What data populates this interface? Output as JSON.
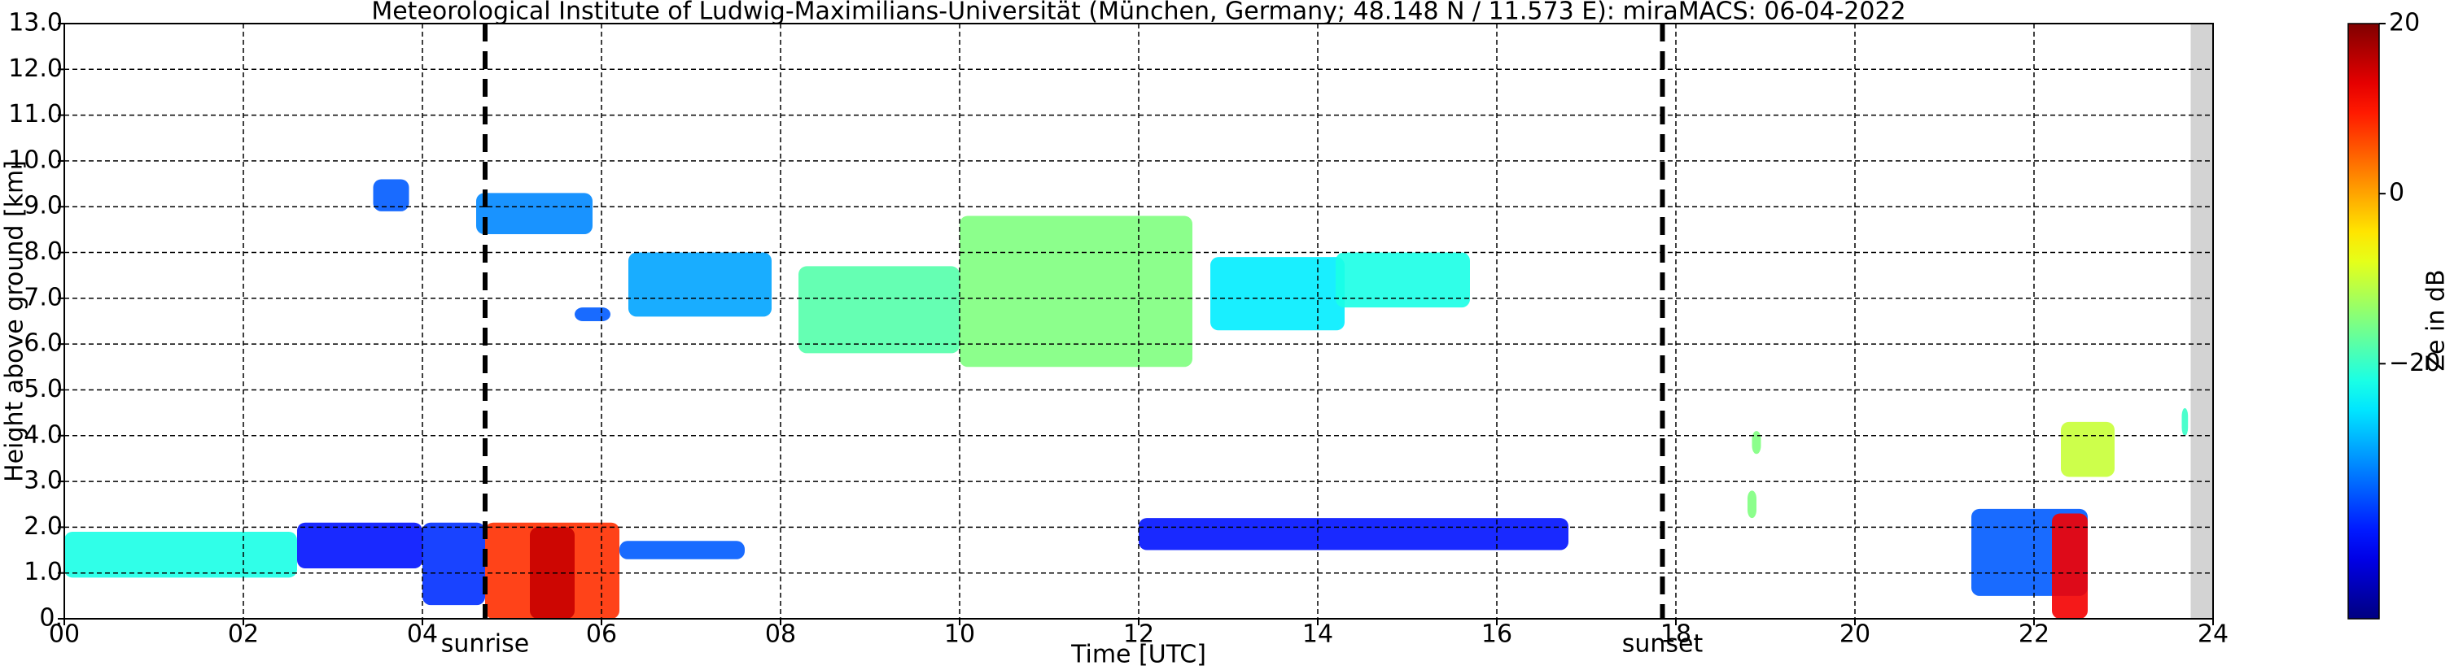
{
  "chart_data": {
    "type": "heatmap",
    "title": "Meteorological Institute of Ludwig-Maximilians-Universität (München, Germany; 48.148 N / 11.573 E):    miraMACS: 06-04-2022",
    "x_label": "Time [UTC]",
    "y_label": "Height above ground [km]",
    "xlim": [
      0,
      24
    ],
    "xticks": [
      {
        "value": 0,
        "label": "00"
      },
      {
        "value": 2,
        "label": "02"
      },
      {
        "value": 4,
        "label": "04"
      },
      {
        "value": 6,
        "label": "06"
      },
      {
        "value": 8,
        "label": "08"
      },
      {
        "value": 10,
        "label": "10"
      },
      {
        "value": 12,
        "label": "12"
      },
      {
        "value": 14,
        "label": "14"
      },
      {
        "value": 16,
        "label": "16"
      },
      {
        "value": 18,
        "label": "18"
      },
      {
        "value": 20,
        "label": "20"
      },
      {
        "value": 22,
        "label": "22"
      },
      {
        "value": 24,
        "label": "24"
      }
    ],
    "ylim": [
      0,
      13
    ],
    "yticks": [
      {
        "value": 0,
        "label": "0."
      },
      {
        "value": 1,
        "label": "1.0"
      },
      {
        "value": 2,
        "label": "2.0"
      },
      {
        "value": 3,
        "label": "3.0"
      },
      {
        "value": 4,
        "label": "4.0"
      },
      {
        "value": 5,
        "label": "5.0"
      },
      {
        "value": 6,
        "label": "6.0"
      },
      {
        "value": 7,
        "label": "7.0"
      },
      {
        "value": 8,
        "label": "8.0"
      },
      {
        "value": 9,
        "label": "9.0"
      },
      {
        "value": 10,
        "label": "10.0"
      },
      {
        "value": 11,
        "label": "11.0"
      },
      {
        "value": 12,
        "label": "12.0"
      },
      {
        "value": 13,
        "label": "13.0"
      }
    ],
    "grid": true,
    "colorbar": {
      "label": "Ze in dB",
      "colormap": "jet",
      "clim": [
        -50,
        20
      ],
      "ticks": [
        20,
        0,
        {
          "value": -20,
          "label": "−20"
        }
      ]
    },
    "annotations": [
      {
        "x": 4.7,
        "label": "sunrise"
      },
      {
        "x": 17.85,
        "label": "sunset"
      }
    ],
    "no_data": [
      23.75,
      24
    ],
    "echoes": [
      {
        "x": [
          0,
          2.6
        ],
        "y": [
          0.9,
          1.9
        ],
        "z": -22
      },
      {
        "x": [
          2.6,
          4
        ],
        "y": [
          1.1,
          2.1
        ],
        "z": -40
      },
      {
        "x": [
          3.45,
          3.85
        ],
        "y": [
          8.9,
          9.6
        ],
        "z": -35
      },
      {
        "x": [
          4.6,
          5.9
        ],
        "y": [
          8.4,
          9.3
        ],
        "z": -32
      },
      {
        "x": [
          5.7,
          6.1
        ],
        "y": [
          6.5,
          6.8
        ],
        "z": -35
      },
      {
        "x": [
          6.3,
          7.9
        ],
        "y": [
          6.6,
          8
        ],
        "z": -30
      },
      {
        "x": [
          8.2,
          10
        ],
        "y": [
          5.8,
          7.7
        ],
        "z": -18
      },
      {
        "x": [
          10,
          12.6
        ],
        "y": [
          5.5,
          8.8
        ],
        "z": -15
      },
      {
        "x": [
          12.8,
          14.3
        ],
        "y": [
          6.3,
          7.9
        ],
        "z": -25
      },
      {
        "x": [
          14.2,
          15.7
        ],
        "y": [
          6.8,
          8
        ],
        "z": -22
      },
      {
        "x": [
          4,
          4.7
        ],
        "y": [
          0.3,
          2.1
        ],
        "z": -38
      },
      {
        "x": [
          4.7,
          6.2
        ],
        "y": [
          0,
          2.1
        ],
        "z": 8
      },
      {
        "x": [
          5.2,
          5.7
        ],
        "y": [
          0,
          2
        ],
        "z": 15
      },
      {
        "x": [
          6.2,
          7.6
        ],
        "y": [
          1.3,
          1.7
        ],
        "z": -35
      },
      {
        "x": [
          12,
          16.8
        ],
        "y": [
          1.5,
          2.2
        ],
        "z": -40
      },
      {
        "x": [
          18.8,
          18.9
        ],
        "y": [
          2.2,
          2.8
        ],
        "z": -15
      },
      {
        "x": [
          18.85,
          18.95
        ],
        "y": [
          3.6,
          4.1
        ],
        "z": -15
      },
      {
        "x": [
          21.3,
          22.6
        ],
        "y": [
          0.5,
          2.4
        ],
        "z": -35
      },
      {
        "x": [
          22.2,
          22.6
        ],
        "y": [
          0,
          2.3
        ],
        "z": 12
      },
      {
        "x": [
          22.3,
          22.9
        ],
        "y": [
          3.1,
          4.3
        ],
        "z": -10
      },
      {
        "x": [
          23.65,
          23.72
        ],
        "y": [
          4,
          4.6
        ],
        "z": -20
      }
    ]
  }
}
